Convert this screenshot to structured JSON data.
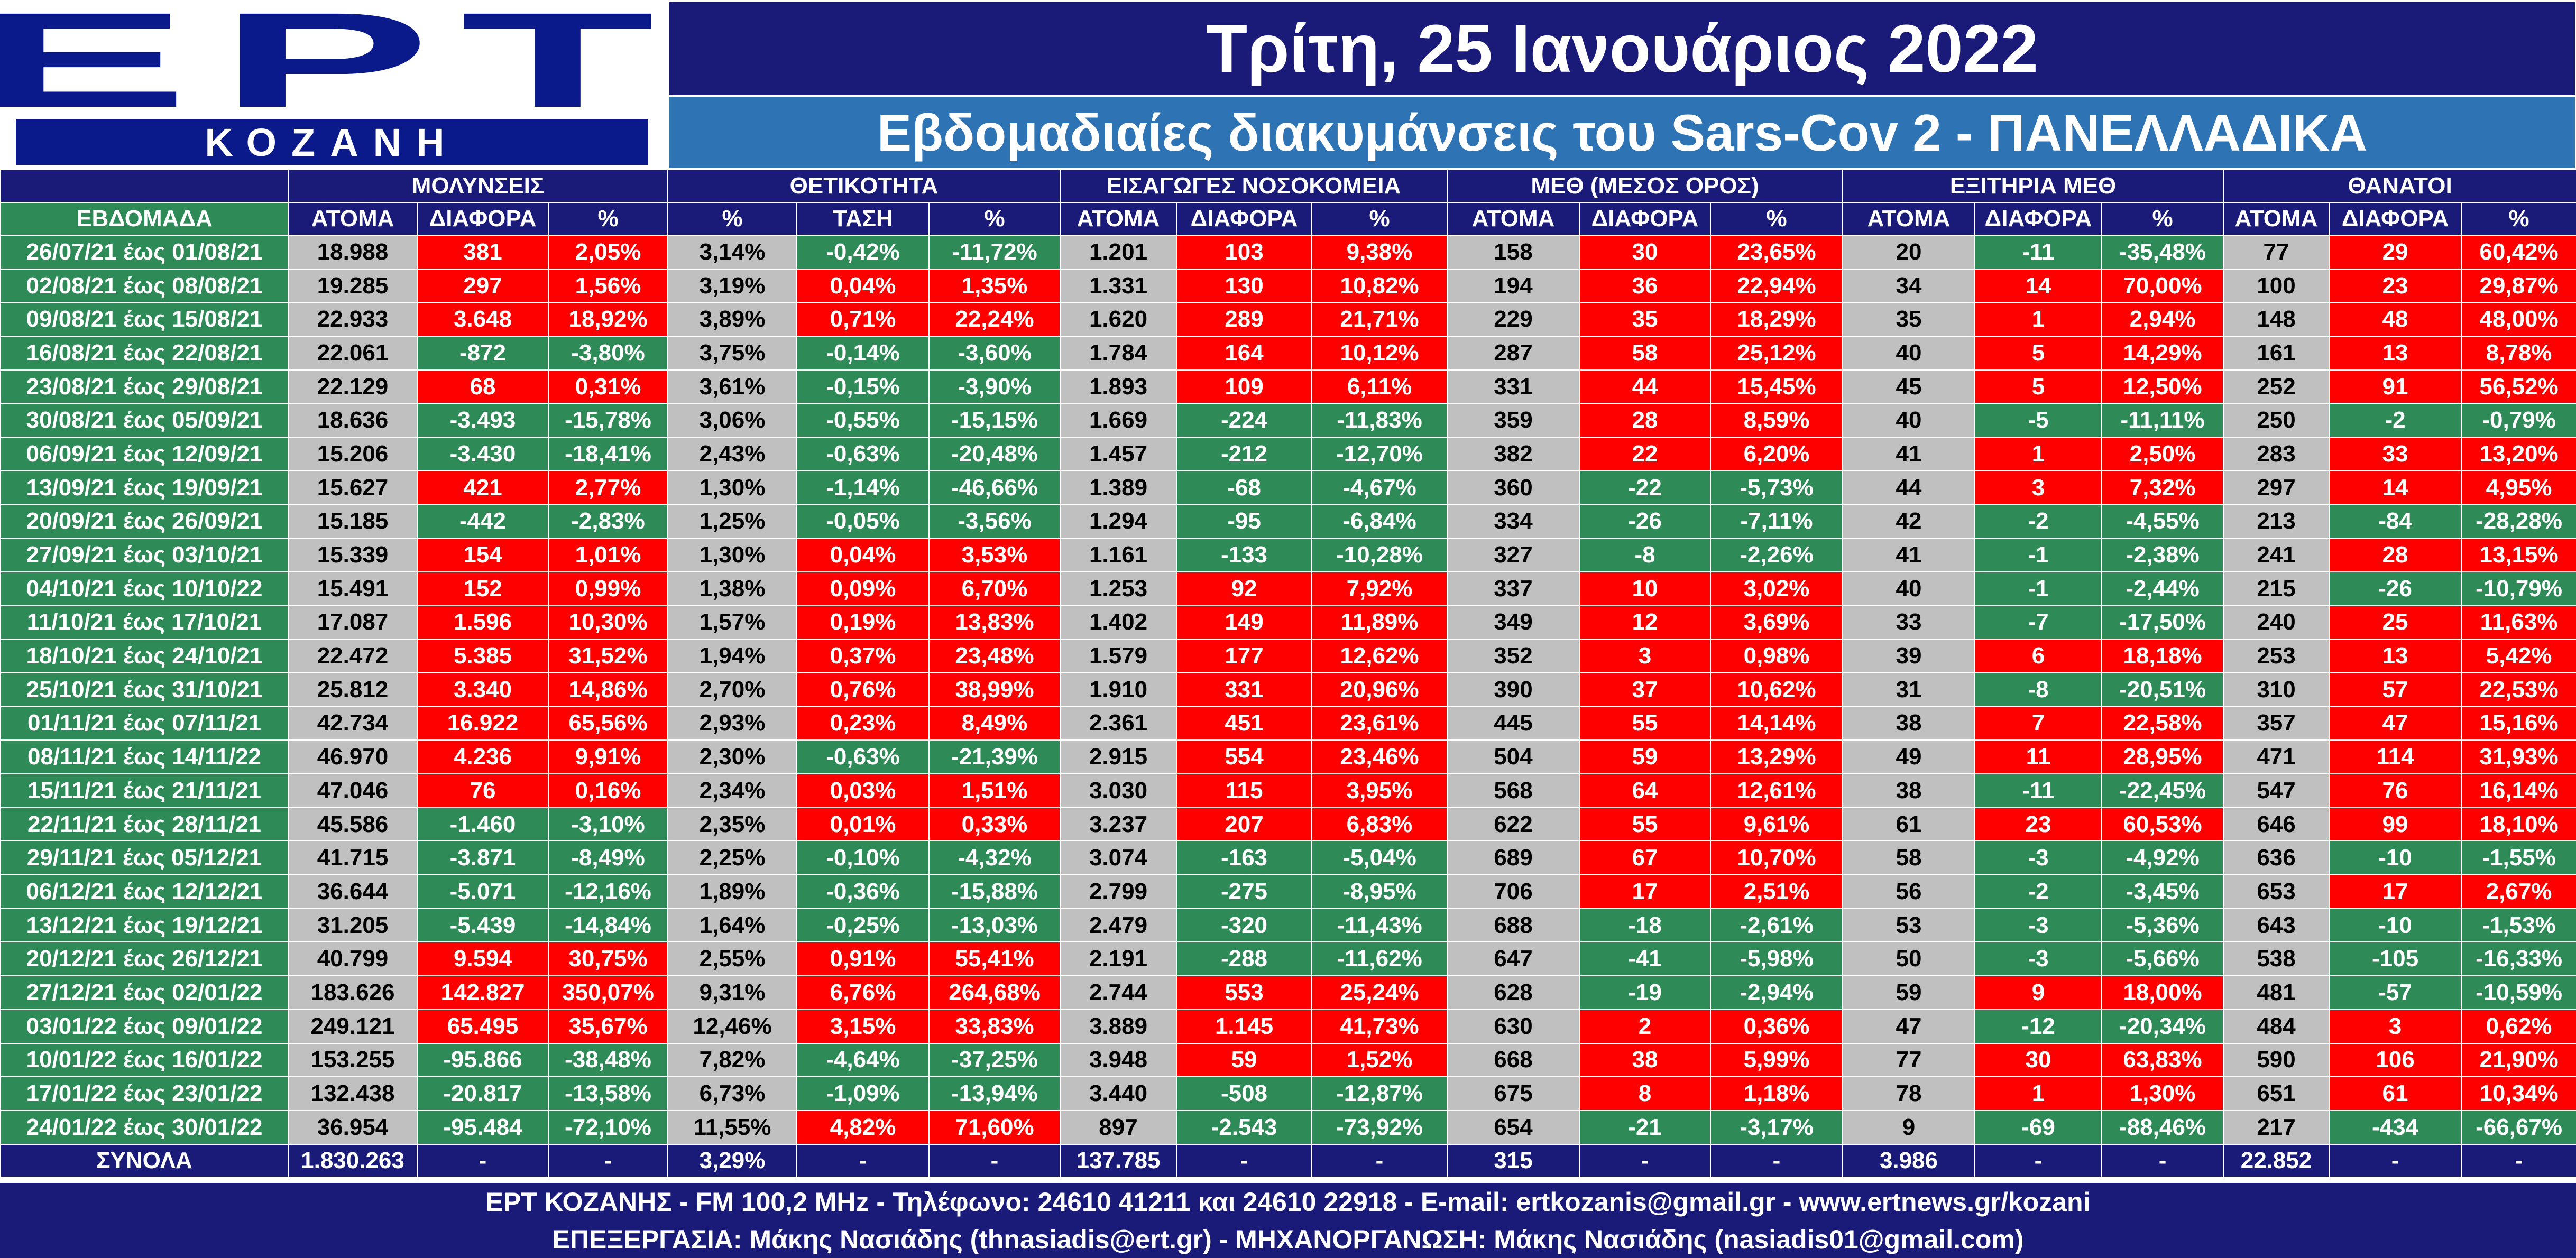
{
  "logo": {
    "main": "ΕΡΤ",
    "sub": "ΚΟΖΑΝΗ"
  },
  "header": {
    "date": "Τρίτη, 25 Ιανουάριος 2022",
    "subtitle": "Εβδομαδιαίες διακυμάνσεις του Sars-Cov 2 - ΠΑΝΕΛΛΑΔΙΚΑ"
  },
  "colors": {
    "navy": "#1a1a78",
    "blue": "#2e74b5",
    "green": "#2e8b57",
    "red": "#ff0000",
    "grey": "#c0c0c0"
  },
  "groups": [
    "ΜΟΛΥΝΣΕΙΣ",
    "ΘΕΤΙΚΟΤΗΤΑ",
    "ΕΙΣΑΓΩΓΕΣ ΝΟΣΟΚΟΜΕΙΑ",
    "ΜΕΘ (ΜΕΣΟΣ ΟΡΟΣ)",
    "ΕΞΙΤΗΡΙΑ ΜΕΘ",
    "ΘΑΝΑΤΟΙ"
  ],
  "subheaders": [
    "ΕΒΔΟΜΑΔΑ",
    "ΑΤΟΜΑ",
    "ΔΙΑΦΟΡΑ",
    "%",
    "%",
    "ΤΑΣΗ",
    "%",
    "ΑΤΟΜΑ",
    "ΔΙΑΦΟΡΑ",
    "%",
    "ΑΤΟΜΑ",
    "ΔΙΑΦΟΡΑ",
    "%",
    "ΑΤΟΜΑ",
    "ΔΙΑΦΟΡΑ",
    "%",
    "ΑΤΟΜΑ",
    "ΔΙΑΦΟΡΑ",
    "%"
  ],
  "rows": [
    [
      "26/07/21 έως 01/08/21",
      "18.988",
      "381",
      "2,05%",
      "3,14%",
      "-0,42%",
      "-11,72%",
      "1.201",
      "103",
      "9,38%",
      "158",
      "30",
      "23,65%",
      "20",
      "-11",
      "-35,48%",
      "77",
      "29",
      "60,42%"
    ],
    [
      "02/08/21 έως 08/08/21",
      "19.285",
      "297",
      "1,56%",
      "3,19%",
      "0,04%",
      "1,35%",
      "1.331",
      "130",
      "10,82%",
      "194",
      "36",
      "22,94%",
      "34",
      "14",
      "70,00%",
      "100",
      "23",
      "29,87%"
    ],
    [
      "09/08/21 έως 15/08/21",
      "22.933",
      "3.648",
      "18,92%",
      "3,89%",
      "0,71%",
      "22,24%",
      "1.620",
      "289",
      "21,71%",
      "229",
      "35",
      "18,29%",
      "35",
      "1",
      "2,94%",
      "148",
      "48",
      "48,00%"
    ],
    [
      "16/08/21 έως 22/08/21",
      "22.061",
      "-872",
      "-3,80%",
      "3,75%",
      "-0,14%",
      "-3,60%",
      "1.784",
      "164",
      "10,12%",
      "287",
      "58",
      "25,12%",
      "40",
      "5",
      "14,29%",
      "161",
      "13",
      "8,78%"
    ],
    [
      "23/08/21 έως 29/08/21",
      "22.129",
      "68",
      "0,31%",
      "3,61%",
      "-0,15%",
      "-3,90%",
      "1.893",
      "109",
      "6,11%",
      "331",
      "44",
      "15,45%",
      "45",
      "5",
      "12,50%",
      "252",
      "91",
      "56,52%"
    ],
    [
      "30/08/21 έως 05/09/21",
      "18.636",
      "-3.493",
      "-15,78%",
      "3,06%",
      "-0,55%",
      "-15,15%",
      "1.669",
      "-224",
      "-11,83%",
      "359",
      "28",
      "8,59%",
      "40",
      "-5",
      "-11,11%",
      "250",
      "-2",
      "-0,79%"
    ],
    [
      "06/09/21 έως 12/09/21",
      "15.206",
      "-3.430",
      "-18,41%",
      "2,43%",
      "-0,63%",
      "-20,48%",
      "1.457",
      "-212",
      "-12,70%",
      "382",
      "22",
      "6,20%",
      "41",
      "1",
      "2,50%",
      "283",
      "33",
      "13,20%"
    ],
    [
      "13/09/21 έως 19/09/21",
      "15.627",
      "421",
      "2,77%",
      "1,30%",
      "-1,14%",
      "-46,66%",
      "1.389",
      "-68",
      "-4,67%",
      "360",
      "-22",
      "-5,73%",
      "44",
      "3",
      "7,32%",
      "297",
      "14",
      "4,95%"
    ],
    [
      "20/09/21 έως 26/09/21",
      "15.185",
      "-442",
      "-2,83%",
      "1,25%",
      "-0,05%",
      "-3,56%",
      "1.294",
      "-95",
      "-6,84%",
      "334",
      "-26",
      "-7,11%",
      "42",
      "-2",
      "-4,55%",
      "213",
      "-84",
      "-28,28%"
    ],
    [
      "27/09/21 έως 03/10/21",
      "15.339",
      "154",
      "1,01%",
      "1,30%",
      "0,04%",
      "3,53%",
      "1.161",
      "-133",
      "-10,28%",
      "327",
      "-8",
      "-2,26%",
      "41",
      "-1",
      "-2,38%",
      "241",
      "28",
      "13,15%"
    ],
    [
      "04/10/21 έως 10/10/22",
      "15.491",
      "152",
      "0,99%",
      "1,38%",
      "0,09%",
      "6,70%",
      "1.253",
      "92",
      "7,92%",
      "337",
      "10",
      "3,02%",
      "40",
      "-1",
      "-2,44%",
      "215",
      "-26",
      "-10,79%"
    ],
    [
      "11/10/21 έως 17/10/21",
      "17.087",
      "1.596",
      "10,30%",
      "1,57%",
      "0,19%",
      "13,83%",
      "1.402",
      "149",
      "11,89%",
      "349",
      "12",
      "3,69%",
      "33",
      "-7",
      "-17,50%",
      "240",
      "25",
      "11,63%"
    ],
    [
      "18/10/21 έως 24/10/21",
      "22.472",
      "5.385",
      "31,52%",
      "1,94%",
      "0,37%",
      "23,48%",
      "1.579",
      "177",
      "12,62%",
      "352",
      "3",
      "0,98%",
      "39",
      "6",
      "18,18%",
      "253",
      "13",
      "5,42%"
    ],
    [
      "25/10/21 έως 31/10/21",
      "25.812",
      "3.340",
      "14,86%",
      "2,70%",
      "0,76%",
      "38,99%",
      "1.910",
      "331",
      "20,96%",
      "390",
      "37",
      "10,62%",
      "31",
      "-8",
      "-20,51%",
      "310",
      "57",
      "22,53%"
    ],
    [
      "01/11/21 έως 07/11/21",
      "42.734",
      "16.922",
      "65,56%",
      "2,93%",
      "0,23%",
      "8,49%",
      "2.361",
      "451",
      "23,61%",
      "445",
      "55",
      "14,14%",
      "38",
      "7",
      "22,58%",
      "357",
      "47",
      "15,16%"
    ],
    [
      "08/11/21 έως 14/11/22",
      "46.970",
      "4.236",
      "9,91%",
      "2,30%",
      "-0,63%",
      "-21,39%",
      "2.915",
      "554",
      "23,46%",
      "504",
      "59",
      "13,29%",
      "49",
      "11",
      "28,95%",
      "471",
      "114",
      "31,93%"
    ],
    [
      "15/11/21 έως 21/11/21",
      "47.046",
      "76",
      "0,16%",
      "2,34%",
      "0,03%",
      "1,51%",
      "3.030",
      "115",
      "3,95%",
      "568",
      "64",
      "12,61%",
      "38",
      "-11",
      "-22,45%",
      "547",
      "76",
      "16,14%"
    ],
    [
      "22/11/21 έως 28/11/21",
      "45.586",
      "-1.460",
      "-3,10%",
      "2,35%",
      "0,01%",
      "0,33%",
      "3.237",
      "207",
      "6,83%",
      "622",
      "55",
      "9,61%",
      "61",
      "23",
      "60,53%",
      "646",
      "99",
      "18,10%"
    ],
    [
      "29/11/21 έως 05/12/21",
      "41.715",
      "-3.871",
      "-8,49%",
      "2,25%",
      "-0,10%",
      "-4,32%",
      "3.074",
      "-163",
      "-5,04%",
      "689",
      "67",
      "10,70%",
      "58",
      "-3",
      "-4,92%",
      "636",
      "-10",
      "-1,55%"
    ],
    [
      "06/12/21 έως 12/12/21",
      "36.644",
      "-5.071",
      "-12,16%",
      "1,89%",
      "-0,36%",
      "-15,88%",
      "2.799",
      "-275",
      "-8,95%",
      "706",
      "17",
      "2,51%",
      "56",
      "-2",
      "-3,45%",
      "653",
      "17",
      "2,67%"
    ],
    [
      "13/12/21 έως 19/12/21",
      "31.205",
      "-5.439",
      "-14,84%",
      "1,64%",
      "-0,25%",
      "-13,03%",
      "2.479",
      "-320",
      "-11,43%",
      "688",
      "-18",
      "-2,61%",
      "53",
      "-3",
      "-5,36%",
      "643",
      "-10",
      "-1,53%"
    ],
    [
      "20/12/21 έως 26/12/21",
      "40.799",
      "9.594",
      "30,75%",
      "2,55%",
      "0,91%",
      "55,41%",
      "2.191",
      "-288",
      "-11,62%",
      "647",
      "-41",
      "-5,98%",
      "50",
      "-3",
      "-5,66%",
      "538",
      "-105",
      "-16,33%"
    ],
    [
      "27/12/21 έως 02/01/22",
      "183.626",
      "142.827",
      "350,07%",
      "9,31%",
      "6,76%",
      "264,68%",
      "2.744",
      "553",
      "25,24%",
      "628",
      "-19",
      "-2,94%",
      "59",
      "9",
      "18,00%",
      "481",
      "-57",
      "-10,59%"
    ],
    [
      "03/01/22 έως 09/01/22",
      "249.121",
      "65.495",
      "35,67%",
      "12,46%",
      "3,15%",
      "33,83%",
      "3.889",
      "1.145",
      "41,73%",
      "630",
      "2",
      "0,36%",
      "47",
      "-12",
      "-20,34%",
      "484",
      "3",
      "0,62%"
    ],
    [
      "10/01/22 έως 16/01/22",
      "153.255",
      "-95.866",
      "-38,48%",
      "7,82%",
      "-4,64%",
      "-37,25%",
      "3.948",
      "59",
      "1,52%",
      "668",
      "38",
      "5,99%",
      "77",
      "30",
      "63,83%",
      "590",
      "106",
      "21,90%"
    ],
    [
      "17/01/22 έως 23/01/22",
      "132.438",
      "-20.817",
      "-13,58%",
      "6,73%",
      "-1,09%",
      "-13,94%",
      "3.440",
      "-508",
      "-12,87%",
      "675",
      "8",
      "1,18%",
      "78",
      "1",
      "1,30%",
      "651",
      "61",
      "10,34%"
    ],
    [
      "24/01/22 έως 30/01/22",
      "36.954",
      "-95.484",
      "-72,10%",
      "11,55%",
      "4,82%",
      "71,60%",
      "897",
      "-2.543",
      "-73,92%",
      "654",
      "-21",
      "-3,17%",
      "9",
      "-69",
      "-88,46%",
      "217",
      "-434",
      "-66,67%"
    ]
  ],
  "totals": [
    "ΣΥΝΟΛΑ",
    "1.830.263",
    "-",
    "-",
    "3,29%",
    "-",
    "-",
    "137.785",
    "-",
    "-",
    "315",
    "-",
    "-",
    "3.986",
    "-",
    "-",
    "22.852",
    "-",
    "-"
  ],
  "footer": {
    "line1": "ΕΡΤ ΚΟΖΑΝΗΣ - FM 100,2 MHz - Τηλέφωνο:  24610 41211 και 24610 22918 - E-mail: ertkozanis@gmail.gr - www.ertnews.gr/kozani",
    "line2": "ΕΠΕΞΕΡΓΑΣΙΑ: Μάκης Νασιάδης (thnasiadis@ert.gr) - ΜΗΧΑΝΟΡΓΑΝΩΣΗ: Μάκης Νασιάδης (nasiadis01@gmail.com)"
  }
}
